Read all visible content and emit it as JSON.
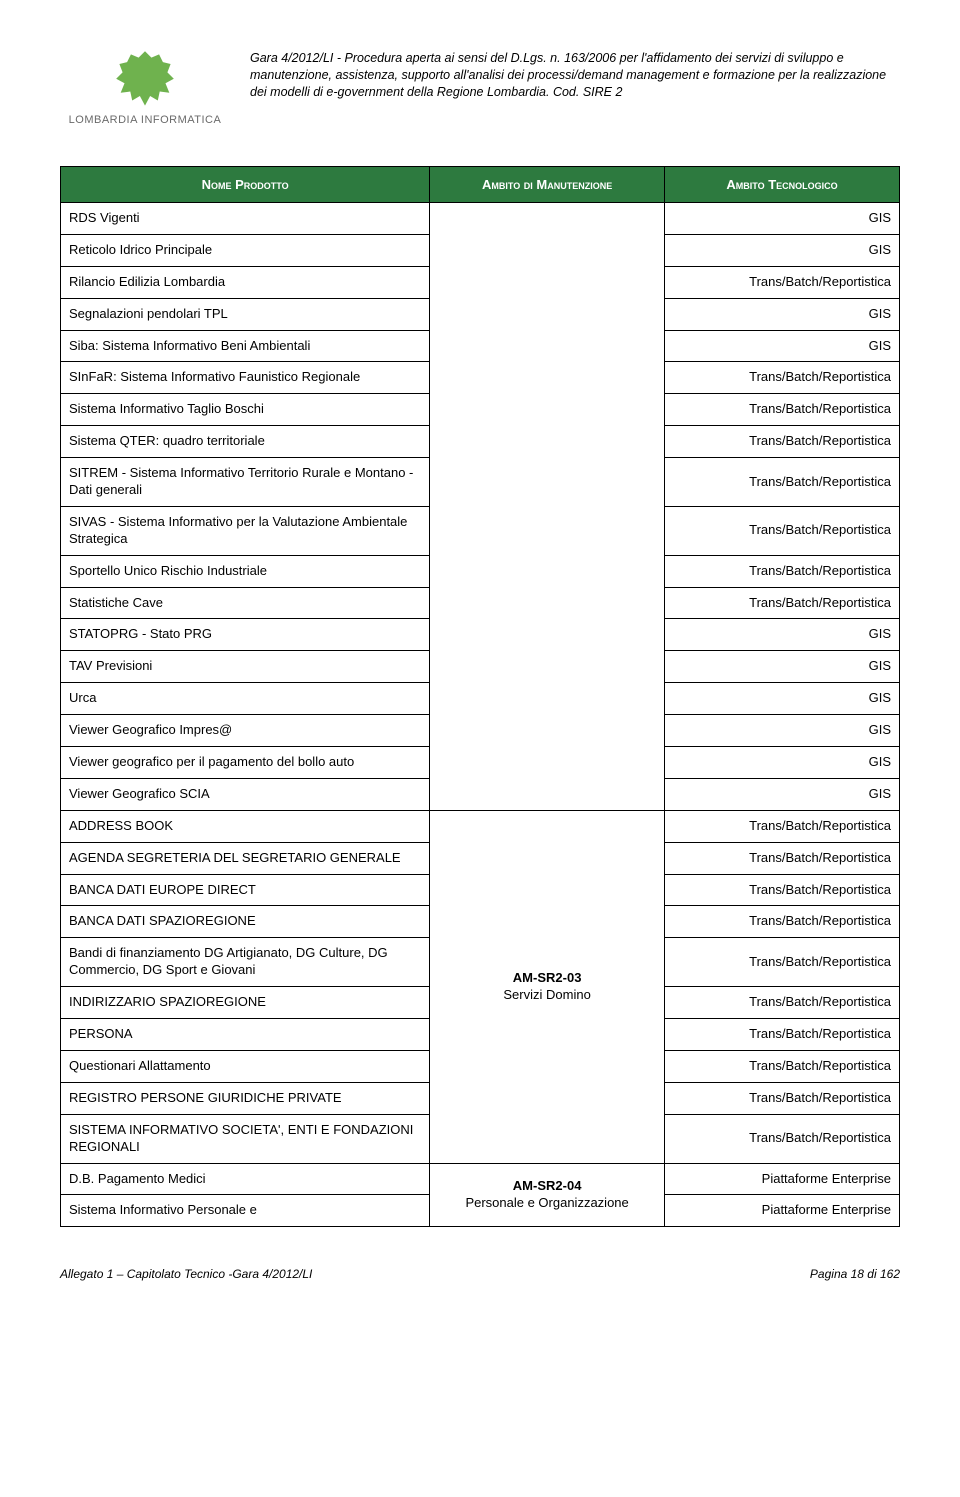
{
  "header": {
    "logo_text": "LOMBARDIA INFORMATICA",
    "logo_color": "#6fb24e",
    "description": "Gara 4/2012/LI - Procedura aperta ai sensi del D.Lgs. n. 163/2006 per l'affidamento dei servizi di sviluppo e manutenzione, assistenza, supporto all'analisi dei processi/demand management e formazione per la realizzazione dei modelli di e-government della Regione Lombardia. Cod. SIRE 2"
  },
  "table": {
    "header_bg": "#2d7a3f",
    "header_fg": "#ffffff",
    "columns": [
      "Nome Prodotto",
      "Ambito di Manutenzione",
      "Ambito Tecnologico"
    ],
    "group1": {
      "ambito": "",
      "rows": [
        {
          "name": "RDS Vigenti",
          "tech": "GIS"
        },
        {
          "name": "Reticolo Idrico Principale",
          "tech": "GIS"
        },
        {
          "name": "Rilancio Edilizia Lombardia",
          "tech": "Trans/Batch/Reportistica"
        },
        {
          "name": "Segnalazioni pendolari TPL",
          "tech": "GIS"
        },
        {
          "name": "Siba: Sistema Informativo Beni Ambientali",
          "tech": "GIS"
        },
        {
          "name": "SInFaR: Sistema Informativo Faunistico Regionale",
          "tech": "Trans/Batch/Reportistica"
        },
        {
          "name": "Sistema Informativo Taglio Boschi",
          "tech": "Trans/Batch/Reportistica"
        },
        {
          "name": "Sistema QTER: quadro territoriale",
          "tech": "Trans/Batch/Reportistica"
        },
        {
          "name": "SITREM - Sistema Informativo Territorio Rurale e Montano - Dati generali",
          "tech": "Trans/Batch/Reportistica"
        },
        {
          "name": "SIVAS - Sistema Informativo per la Valutazione Ambientale Strategica",
          "tech": "Trans/Batch/Reportistica"
        },
        {
          "name": "Sportello Unico Rischio Industriale",
          "tech": "Trans/Batch/Reportistica"
        },
        {
          "name": "Statistiche Cave",
          "tech": "Trans/Batch/Reportistica"
        },
        {
          "name": "STATOPRG - Stato PRG",
          "tech": "GIS"
        },
        {
          "name": "TAV Previsioni",
          "tech": "GIS"
        },
        {
          "name": "Urca",
          "tech": "GIS"
        },
        {
          "name": "Viewer Geografico Impres@",
          "tech": "GIS"
        },
        {
          "name": "Viewer geografico per il pagamento del bollo auto",
          "tech": "GIS"
        },
        {
          "name": "Viewer Geografico SCIA",
          "tech": "GIS"
        }
      ]
    },
    "group2": {
      "ambito_code": "AM-SR2-03",
      "ambito_desc": "Servizi Domino",
      "rows": [
        {
          "name": "ADDRESS BOOK",
          "tech": "Trans/Batch/Reportistica"
        },
        {
          "name": "AGENDA SEGRETERIA DEL SEGRETARIO GENERALE",
          "tech": "Trans/Batch/Reportistica"
        },
        {
          "name": "BANCA DATI EUROPE DIRECT",
          "tech": "Trans/Batch/Reportistica"
        },
        {
          "name": "BANCA DATI SPAZIOREGIONE",
          "tech": "Trans/Batch/Reportistica"
        },
        {
          "name": "Bandi di finanziamento DG Artigianato, DG Culture, DG Commercio, DG Sport e Giovani",
          "tech": "Trans/Batch/Reportistica"
        },
        {
          "name": "INDIRIZZARIO SPAZIOREGIONE",
          "tech": "Trans/Batch/Reportistica"
        },
        {
          "name": "PERSONA",
          "tech": "Trans/Batch/Reportistica"
        },
        {
          "name": "Questionari Allattamento",
          "tech": "Trans/Batch/Reportistica"
        },
        {
          "name": "REGISTRO PERSONE GIURIDICHE PRIVATE",
          "tech": "Trans/Batch/Reportistica"
        },
        {
          "name": "SISTEMA INFORMATIVO SOCIETA', ENTI E FONDAZIONI REGIONALI",
          "tech": "Trans/Batch/Reportistica"
        }
      ]
    },
    "group3": {
      "ambito_code": "AM-SR2-04",
      "ambito_desc": "Personale e Organizzazione",
      "rows": [
        {
          "name": "D.B. Pagamento Medici",
          "tech": "Piattaforme Enterprise"
        },
        {
          "name": "Sistema Informativo Personale e",
          "tech": "Piattaforme Enterprise"
        }
      ]
    }
  },
  "footer": {
    "left": "Allegato 1 – Capitolato Tecnico -Gara 4/2012/LI",
    "right": "Pagina 18 di 162"
  }
}
